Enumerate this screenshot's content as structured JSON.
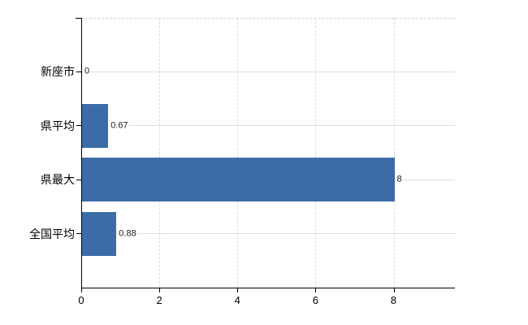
{
  "chart_data": {
    "type": "bar",
    "orientation": "horizontal",
    "title": "",
    "categories": [
      "新座市",
      "県平均",
      "県最大",
      "全国平均"
    ],
    "values": [
      0,
      0.67,
      8,
      0.88
    ],
    "value_labels": [
      "0",
      "0.67",
      "8",
      "0.88"
    ],
    "x_tick_labels": [
      "0",
      "2",
      "4",
      "6",
      "8"
    ],
    "x_tick_values": [
      0,
      2,
      4,
      6,
      8
    ],
    "xlim": [
      0,
      9.57
    ],
    "grid": true,
    "legend": false,
    "colors": {
      "bar": "#3c6ca8",
      "h_gridline": "#dbe2d6",
      "v_gridline": "#dadada",
      "top_border": "#d5d5d5",
      "axis": "#000000",
      "text": "#000000"
    }
  }
}
